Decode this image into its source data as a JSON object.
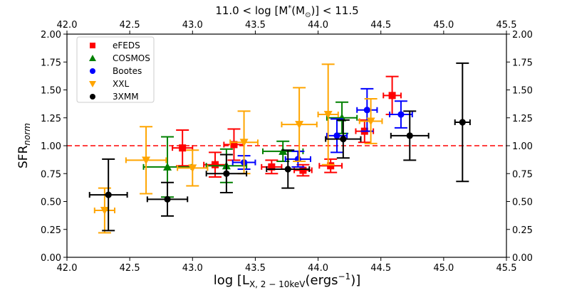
{
  "chart_data": {
    "type": "scatter",
    "title": "11.0 < log [M*(M⊙)] < 11.5",
    "xlabel": "log [L_X, 2−10keV (ergs^−1)]",
    "xlabel_main": "log [L",
    "xlabel_sub": "X, 2 − 10keV",
    "xlabel_tail": "(ergs",
    "xlabel_sup": "−1",
    "xlabel_end": ")]",
    "ylabel_main": "SFR",
    "ylabel_sub": "norm",
    "title_main": "11.0 < log [M",
    "title_star": "*",
    "title_mid": "(M",
    "title_sun": "⊙",
    "title_end": ")] < 11.5",
    "xlim": [
      42.0,
      45.5
    ],
    "ylim": [
      0.0,
      2.0
    ],
    "xticks": [
      "42.0",
      "42.5",
      "43.0",
      "43.5",
      "44.0",
      "44.5",
      "45.0",
      "45.5"
    ],
    "yticks": [
      "0.00",
      "0.25",
      "0.50",
      "0.75",
      "1.00",
      "1.25",
      "1.50",
      "1.75",
      "2.00"
    ],
    "reference_line": 1.0,
    "legend_position": "top-left",
    "series": [
      {
        "name": "eFEDS",
        "color": "#ff0000",
        "marker": "square",
        "points": [
          {
            "x": 42.92,
            "y": 0.98,
            "xerr": 0.08,
            "yerr": 0.16
          },
          {
            "x": 43.18,
            "y": 0.83,
            "xerr": 0.09,
            "yerr": 0.11
          },
          {
            "x": 43.33,
            "y": 1.01,
            "xerr": 0.08,
            "yerr": 0.14
          },
          {
            "x": 43.63,
            "y": 0.81,
            "xerr": 0.08,
            "yerr": 0.06
          },
          {
            "x": 43.88,
            "y": 0.78,
            "xerr": 0.07,
            "yerr": 0.05
          },
          {
            "x": 44.1,
            "y": 0.82,
            "xerr": 0.09,
            "yerr": 0.06
          },
          {
            "x": 44.37,
            "y": 1.13,
            "xerr": 0.07,
            "yerr": 0.1
          },
          {
            "x": 44.59,
            "y": 1.45,
            "xerr": 0.07,
            "yerr": 0.17
          }
        ]
      },
      {
        "name": "COSMOS",
        "color": "#008000",
        "marker": "triangle",
        "points": [
          {
            "x": 42.8,
            "y": 0.81,
            "xerr": 0.19,
            "yerr": 0.27
          },
          {
            "x": 43.27,
            "y": 0.82,
            "xerr": 0.16,
            "yerr": 0.15
          },
          {
            "x": 43.72,
            "y": 0.95,
            "xerr": 0.16,
            "yerr": 0.09
          },
          {
            "x": 44.19,
            "y": 1.25,
            "xerr": 0.12,
            "yerr": 0.14
          }
        ]
      },
      {
        "name": "Bootes",
        "color": "#0000ff",
        "marker": "circle",
        "points": [
          {
            "x": 43.41,
            "y": 0.85,
            "xerr": 0.09,
            "yerr": 0.06
          },
          {
            "x": 43.84,
            "y": 0.88,
            "xerr": 0.1,
            "yerr": 0.07
          },
          {
            "x": 44.15,
            "y": 1.09,
            "xerr": 0.08,
            "yerr": 0.15
          },
          {
            "x": 44.39,
            "y": 1.32,
            "xerr": 0.08,
            "yerr": 0.19
          },
          {
            "x": 44.66,
            "y": 1.28,
            "xerr": 0.09,
            "yerr": 0.12
          }
        ]
      },
      {
        "name": "XXL",
        "color": "#ffa500",
        "marker": "triangle-down",
        "points": [
          {
            "x": 42.3,
            "y": 0.42,
            "xerr": 0.08,
            "yerr": 0.2
          },
          {
            "x": 42.63,
            "y": 0.87,
            "xerr": 0.16,
            "yerr": 0.3
          },
          {
            "x": 43.0,
            "y": 0.8,
            "xerr": 0.12,
            "yerr": 0.16
          },
          {
            "x": 43.41,
            "y": 1.03,
            "xerr": 0.11,
            "yerr": 0.28
          },
          {
            "x": 43.85,
            "y": 1.19,
            "xerr": 0.14,
            "yerr": 0.33
          },
          {
            "x": 44.08,
            "y": 1.28,
            "xerr": 0.08,
            "yerr": 0.45
          },
          {
            "x": 44.42,
            "y": 1.22,
            "xerr": 0.09,
            "yerr": 0.2
          }
        ]
      },
      {
        "name": "3XMM",
        "color": "#000000",
        "marker": "circle",
        "points": [
          {
            "x": 42.33,
            "y": 0.56,
            "xerr": 0.15,
            "yerr": 0.32
          },
          {
            "x": 42.8,
            "y": 0.52,
            "xerr": 0.16,
            "yerr": 0.15
          },
          {
            "x": 43.27,
            "y": 0.75,
            "xerr": 0.16,
            "yerr": 0.17
          },
          {
            "x": 43.76,
            "y": 0.79,
            "xerr": 0.17,
            "yerr": 0.17
          },
          {
            "x": 44.2,
            "y": 1.06,
            "xerr": 0.14,
            "yerr": 0.17
          },
          {
            "x": 44.73,
            "y": 1.09,
            "xerr": 0.15,
            "yerr": 0.22
          },
          {
            "x": 45.15,
            "y": 1.21,
            "xerr": 0.06,
            "yerr": 0.53
          }
        ]
      }
    ]
  }
}
